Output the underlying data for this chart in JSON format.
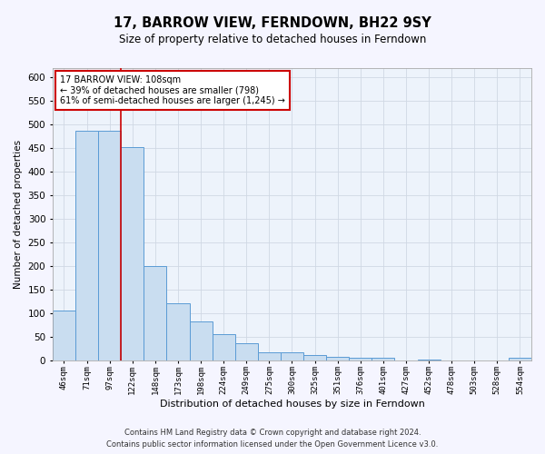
{
  "title": "17, BARROW VIEW, FERNDOWN, BH22 9SY",
  "subtitle": "Size of property relative to detached houses in Ferndown",
  "xlabel": "Distribution of detached houses by size in Ferndown",
  "ylabel": "Number of detached properties",
  "bin_labels": [
    "46sqm",
    "71sqm",
    "97sqm",
    "122sqm",
    "148sqm",
    "173sqm",
    "198sqm",
    "224sqm",
    "249sqm",
    "275sqm",
    "300sqm",
    "325sqm",
    "351sqm",
    "376sqm",
    "401sqm",
    "427sqm",
    "452sqm",
    "478sqm",
    "503sqm",
    "528sqm",
    "554sqm"
  ],
  "bin_values": [
    105,
    487,
    487,
    452,
    200,
    120,
    82,
    55,
    35,
    17,
    17,
    10,
    7,
    5,
    5,
    0,
    2,
    0,
    0,
    0,
    5
  ],
  "bar_color": "#c9ddf0",
  "bar_edge_color": "#5b9bd5",
  "grid_color": "#d0d8e4",
  "background_color": "#edf3fb",
  "fig_background_color": "#f5f5ff",
  "red_line_bin_index": 2,
  "annotation_text1": "17 BARROW VIEW: 108sqm",
  "annotation_text2": "← 39% of detached houses are smaller (798)",
  "annotation_text3": "61% of semi-detached houses are larger (1,245) →",
  "annotation_box_facecolor": "#ffffff",
  "annotation_box_edgecolor": "#cc0000",
  "footnote1": "Contains HM Land Registry data © Crown copyright and database right 2024.",
  "footnote2": "Contains public sector information licensed under the Open Government Licence v3.0.",
  "ylim": [
    0,
    620
  ],
  "yticks": [
    0,
    50,
    100,
    150,
    200,
    250,
    300,
    350,
    400,
    450,
    500,
    550,
    600
  ]
}
